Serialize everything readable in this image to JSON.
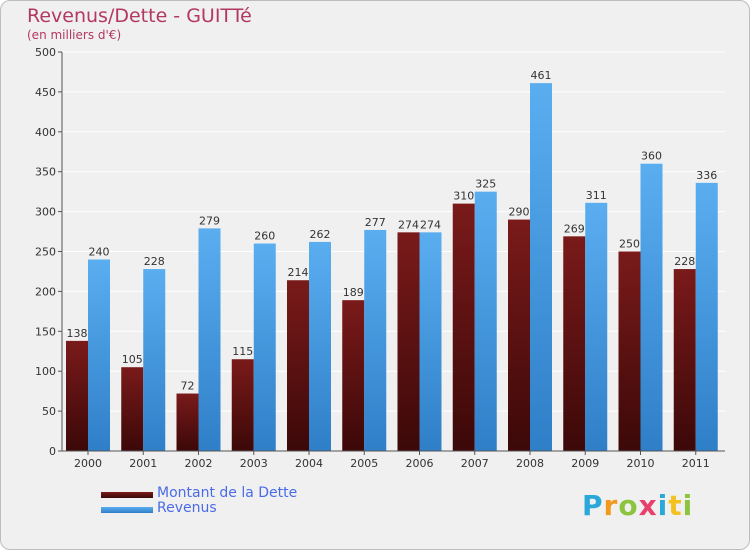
{
  "title": "Revenus/Dette - GUITTé",
  "subtitle": "(en milliers d'€)",
  "logo": {
    "text": "Proxiti",
    "letters": [
      {
        "ch": "P",
        "color": "#2aa8d9"
      },
      {
        "ch": "r",
        "color": "#f29a1f"
      },
      {
        "ch": "o",
        "color": "#8cc43f"
      },
      {
        "ch": "x",
        "color": "#e83f6c"
      },
      {
        "ch": "i",
        "color": "#2aa8d9"
      },
      {
        "ch": "t",
        "color": "#f2c21f"
      },
      {
        "ch": "i",
        "color": "#8cc43f"
      }
    ]
  },
  "chart_data": {
    "type": "bar",
    "title": "Revenus/Dette - GUITTé",
    "subtitle": "(en milliers d'€)",
    "categories": [
      "2000",
      "2001",
      "2002",
      "2003",
      "2004",
      "2005",
      "2006",
      "2007",
      "2008",
      "2009",
      "2010",
      "2011"
    ],
    "series": [
      {
        "name": "Montant de la Dette",
        "color": "#7a1a1a",
        "color_dark": "#3c0808",
        "values": [
          138,
          105,
          72,
          115,
          214,
          189,
          274,
          310,
          290,
          269,
          250,
          228
        ]
      },
      {
        "name": "Revenus",
        "color": "#5aaef0",
        "color_dark": "#2f7fc8",
        "values": [
          240,
          228,
          279,
          260,
          262,
          277,
          274,
          325,
          461,
          311,
          360,
          336
        ]
      }
    ],
    "ylim": [
      0,
      500
    ],
    "yticks": [
      0,
      50,
      100,
      150,
      200,
      250,
      300,
      350,
      400,
      450,
      500
    ],
    "grid": true,
    "legend_position": "bottom-left"
  }
}
